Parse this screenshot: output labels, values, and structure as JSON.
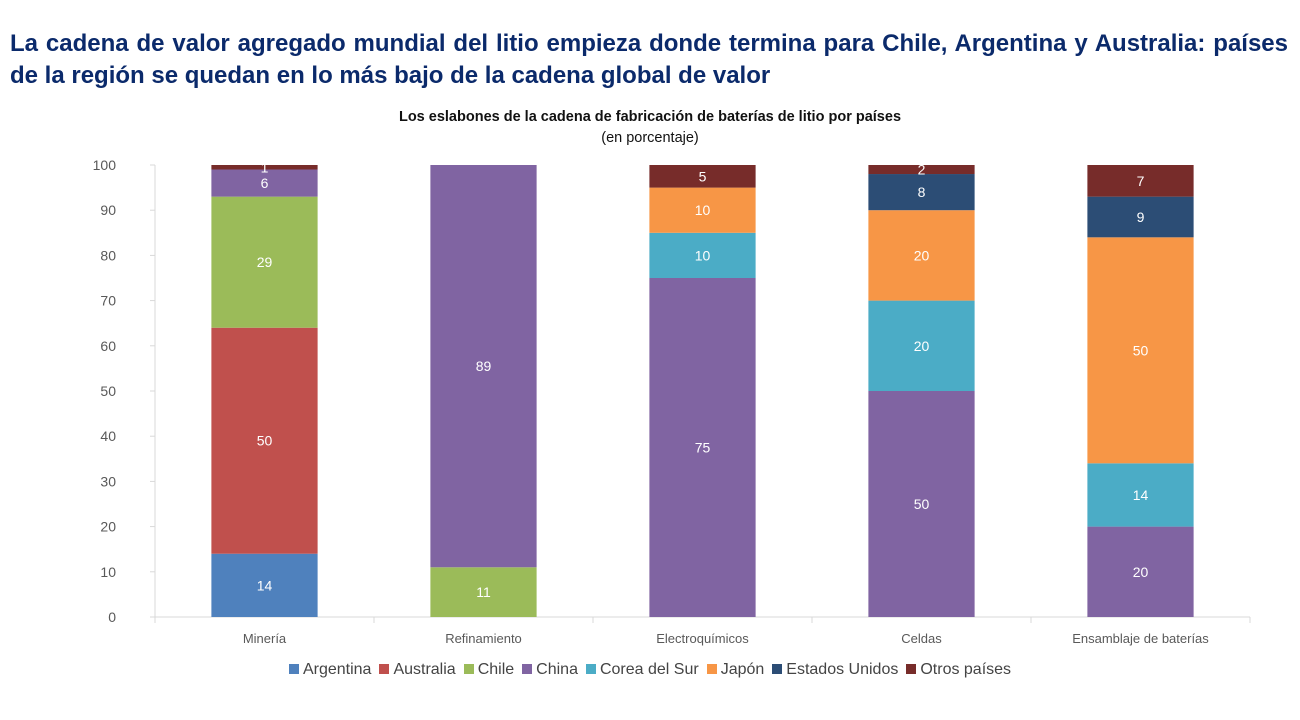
{
  "headline": "La cadena de valor agregado mundial del litio empieza donde termina para Chile, Argentina y Australia: países de la región se quedan en lo más bajo de la cadena global de valor",
  "chart_data": {
    "type": "bar",
    "stacked": true,
    "title": "Los eslabones de la cadena de fabricación de baterías de litio por países",
    "subtitle": "(en porcentaje)",
    "xlabel": "",
    "ylabel": "",
    "ylim": [
      0,
      100
    ],
    "yticks": [
      0,
      10,
      20,
      30,
      40,
      50,
      60,
      70,
      80,
      90,
      100
    ],
    "grid": false,
    "legend_position": "bottom",
    "categories": [
      "Minería",
      "Refinamiento",
      "Electroquímicos",
      "Celdas",
      "Ensamblaje de baterías"
    ],
    "series": [
      {
        "name": "Argentina",
        "color": "#4f81bd",
        "values": [
          14,
          0,
          0,
          0,
          0
        ]
      },
      {
        "name": "Australia",
        "color": "#c0504d",
        "values": [
          50,
          0,
          0,
          0,
          0
        ]
      },
      {
        "name": "Chile",
        "color": "#9bbb59",
        "values": [
          29,
          11,
          0,
          0,
          0
        ]
      },
      {
        "name": "China",
        "color": "#8064a2",
        "values": [
          6,
          89,
          75,
          50,
          20
        ]
      },
      {
        "name": "Corea del Sur",
        "color": "#4bacc6",
        "values": [
          0,
          0,
          10,
          20,
          14
        ]
      },
      {
        "name": "Japón",
        "color": "#f79646",
        "values": [
          0,
          0,
          10,
          20,
          50
        ]
      },
      {
        "name": "Estados Unidos",
        "color": "#2c4d75",
        "values": [
          0,
          0,
          0,
          8,
          9
        ]
      },
      {
        "name": "Otros países",
        "color": "#772c2a",
        "values": [
          1,
          0,
          5,
          2,
          7
        ]
      }
    ]
  }
}
